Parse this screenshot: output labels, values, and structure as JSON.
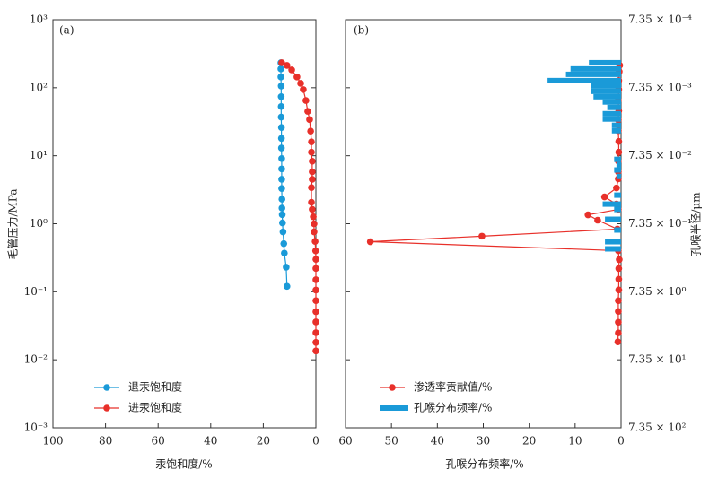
{
  "chart_data": [
    {
      "type": "line",
      "panel_label": "(a)",
      "xlabel": "汞饱和度/%",
      "ylabel": "毛管压力/MPa",
      "xlim": [
        100,
        0
      ],
      "xticks": [
        100,
        80,
        60,
        40,
        20,
        0
      ],
      "ylim": [
        0.001,
        1000
      ],
      "ylog": true,
      "yticks": [
        {
          "value": 0.001,
          "label": "10⁻³"
        },
        {
          "value": 0.01,
          "label": "10⁻²"
        },
        {
          "value": 0.1,
          "label": "10⁻¹"
        },
        {
          "value": 1,
          "label": "10⁰"
        },
        {
          "value": 10,
          "label": "10¹"
        },
        {
          "value": 100,
          "label": "10²"
        },
        {
          "value": 1000,
          "label": "10³"
        }
      ],
      "legend": "lower left",
      "series": [
        {
          "name": "退汞饱和度",
          "color": "#1a9ad8",
          "x": [
            13.3,
            13.3,
            13.3,
            13.2,
            13.2,
            13.2,
            13.2,
            13.1,
            13.1,
            13.1,
            13.0,
            13.0,
            13.0,
            13.0,
            12.9,
            12.9,
            12.8,
            12.7,
            12.5,
            12.2,
            12.0,
            11.3,
            11.0
          ],
          "y": [
            233,
            189,
            144,
            106,
            74,
            53,
            37,
            26,
            18,
            13,
            9.1,
            6.4,
            4.5,
            3.3,
            2.3,
            1.7,
            1.36,
            1.03,
            0.76,
            0.51,
            0.37,
            0.23,
            0.12
          ]
        },
        {
          "name": "进汞饱和度",
          "color": "#e8302a",
          "x": [
            13.0,
            11.0,
            9.2,
            7.2,
            5.8,
            4.8,
            3.8,
            3.1,
            2.4,
            2.0,
            1.7,
            1.7,
            1.4,
            1.4,
            1.4,
            1.7,
            1.7,
            1.4,
            1.0,
            0.7,
            0.7,
            0.3,
            0.1,
            0,
            0,
            0,
            0,
            0,
            0,
            0,
            0,
            0,
            0
          ],
          "y": [
            233,
            213,
            183,
            144,
            116,
            94,
            65,
            45,
            34,
            23,
            16,
            11.3,
            8.3,
            5.8,
            4.5,
            3.4,
            2.07,
            1.63,
            1.27,
            1.0,
            0.76,
            0.55,
            0.4,
            0.3,
            0.22,
            0.15,
            0.106,
            0.074,
            0.051,
            0.036,
            0.025,
            0.018,
            0.0135
          ]
        }
      ]
    },
    {
      "type": "combo",
      "panel_label": "(b)",
      "xlabel": "孔喉分布频率/%",
      "y2label": "孔喉半径/μm",
      "xlim": [
        60,
        0
      ],
      "xticks": [
        60,
        50,
        40,
        30,
        20,
        10,
        0
      ],
      "y2lim": [
        735,
        0.000735
      ],
      "y2log": true,
      "y2ticks": [
        {
          "value": 0.000735,
          "label": "7.35 × 10⁻⁴"
        },
        {
          "value": 0.00735,
          "label": "7.35 × 10⁻³"
        },
        {
          "value": 0.0735,
          "label": "7.35 × 10⁻²"
        },
        {
          "value": 0.735,
          "label": "7.35 × 10⁻¹"
        },
        {
          "value": 7.35,
          "label": "7.35 × 10⁰"
        },
        {
          "value": 73.5,
          "label": "7.35 × 10¹"
        },
        {
          "value": 735,
          "label": "7.35 × 10²"
        }
      ],
      "legend": "lower left",
      "series": [
        {
          "type": "line",
          "name": "渗透率贡献值/%",
          "color": "#e8302a",
          "axis": "y2",
          "x": [
            0.3,
            0.4,
            0.5,
            0.5,
            0.6,
            0.5,
            0.6,
            0.6,
            0.5,
            0.5,
            0.6,
            0.6,
            0.6,
            1.0,
            3.6,
            1.0,
            0.6,
            7.2,
            5.1,
            0.8,
            30.3,
            54.6,
            0.6,
            0.4,
            0.5,
            0.5,
            0.5,
            0.6,
            0.6,
            0.6,
            0.6,
            0.7
          ],
          "y": [
            0.00344,
            0.00426,
            0.00577,
            0.00781,
            0.0112,
            0.0161,
            0.0219,
            0.0315,
            0.0453,
            0.0651,
            0.0881,
            0.127,
            0.161,
            0.219,
            0.296,
            0.378,
            0.453,
            0.543,
            0.651,
            0.881,
            1.12,
            1.35,
            1.83,
            2.47,
            3.35,
            4.81,
            6.92,
            9.95,
            14.3,
            20.6,
            29.6,
            40.1
          ]
        },
        {
          "type": "bar",
          "name": "孔喉分布频率/%",
          "color": "#1a9ad8",
          "axis": "y2",
          "y": [
            0.00315,
            0.00389,
            0.00467,
            0.00577,
            0.00692,
            0.0083,
            0.00995,
            0.0119,
            0.0143,
            0.0177,
            0.0212,
            0.0262,
            0.0315,
            0.083,
            0.0995,
            0.119,
            0.148,
            0.279,
            0.378,
            0.453,
            0.632,
            0.909,
            1.35,
            1.72
          ],
          "values": [
            7,
            11,
            12,
            16,
            6.5,
            6.5,
            6,
            4,
            3,
            4,
            4,
            2,
            2,
            1.5,
            1,
            1.5,
            1,
            1.5,
            4,
            1.5,
            3.5,
            1.5,
            3.5,
            3.5
          ]
        }
      ]
    }
  ]
}
